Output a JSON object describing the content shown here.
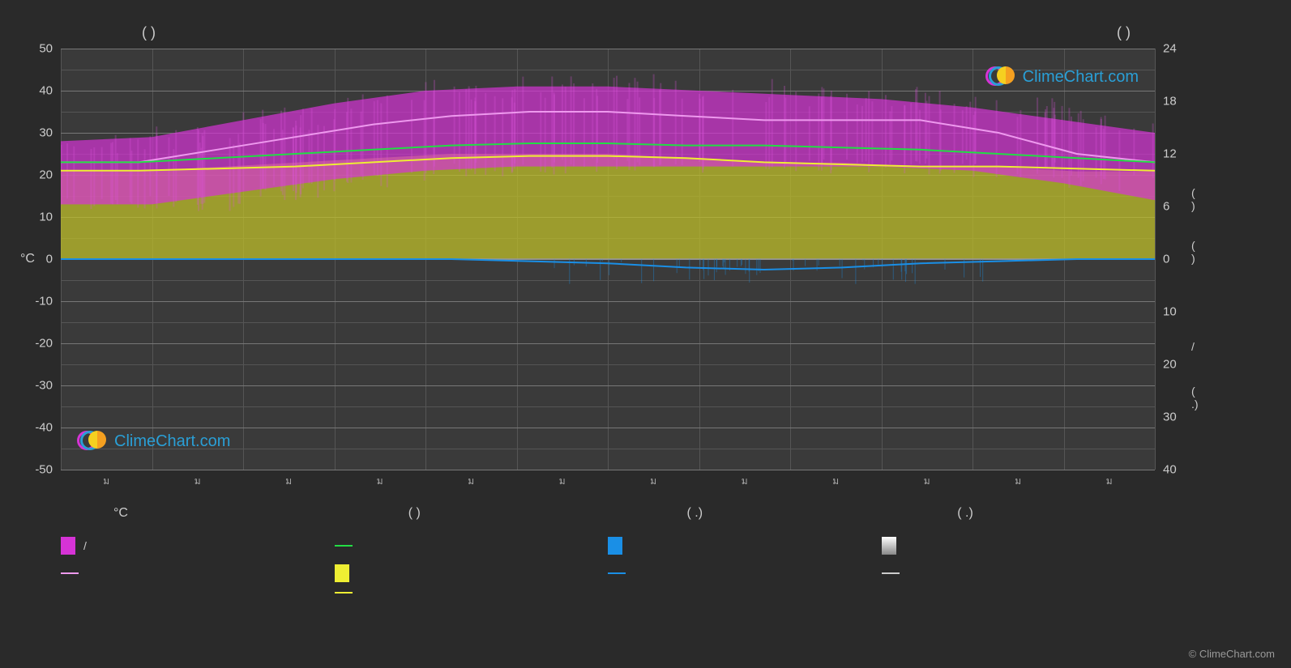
{
  "chart": {
    "type": "climate-composite",
    "background_color": "#2a2a2a",
    "plot_background": "#3a3a3a",
    "grid_color": "#555555",
    "grid_major_color": "#777777",
    "title_left": "(        )",
    "title_right": "(        )",
    "left_axis": {
      "label": "°C",
      "min": -50,
      "max": 50,
      "ticks": [
        50,
        40,
        30,
        20,
        10,
        0,
        -10,
        -20,
        -30,
        -40,
        -50
      ],
      "tick_labels": [
        "50",
        "40",
        "30",
        "20",
        "10",
        "0",
        "-10",
        "-20",
        "-30",
        "-40",
        "-50"
      ]
    },
    "right_axis": {
      "ticks_upper": [
        24,
        18,
        12,
        6,
        0
      ],
      "ticks_lower": [
        10,
        20,
        30,
        40
      ],
      "extra_labels": [
        "(  )",
        "(  )",
        "/",
        "(  .)"
      ]
    },
    "x_axis": {
      "months": 12,
      "tick_label": "ม"
    },
    "series": {
      "temp_range_fill": {
        "color": "#d633d6",
        "opacity": 0.7,
        "upper": [
          28,
          29,
          33,
          37,
          40,
          41,
          41,
          40,
          39,
          38,
          36,
          33,
          30
        ],
        "lower": [
          13,
          13,
          16,
          19,
          21,
          22,
          22,
          22,
          22,
          22,
          21,
          18,
          14
        ]
      },
      "max_temp_line": {
        "color": "#ee99ee",
        "width": 2,
        "values": [
          23,
          23,
          26,
          29,
          32,
          34,
          35,
          35,
          34,
          33,
          33,
          33,
          30,
          25,
          23
        ]
      },
      "mean_temp_line": {
        "color": "#22dd44",
        "width": 2,
        "values": [
          23,
          23,
          24,
          25,
          26,
          27,
          27.5,
          27.5,
          27,
          27,
          26.5,
          26,
          25,
          24,
          23
        ]
      },
      "min_temp_line": {
        "color": "#eeee33",
        "width": 2,
        "values": [
          21,
          21,
          21.5,
          22,
          23,
          24,
          24.5,
          24.5,
          24,
          23,
          22.5,
          22,
          22,
          21.5,
          21
        ]
      },
      "sunshine_fill": {
        "color": "#bdbd2a",
        "opacity": 0.75,
        "upper_right_axis": [
          10,
          10,
          10.5,
          11,
          11.5,
          12,
          12,
          12,
          11.5,
          11,
          11,
          10.5,
          10.5,
          10,
          10
        ],
        "lower": 0
      },
      "precip_line": {
        "color": "#1a8fe6",
        "width": 2,
        "values_below_zero": [
          0,
          0,
          0,
          0,
          0,
          0,
          -0.5,
          -1,
          -2,
          -2.5,
          -2,
          -1,
          -0.5,
          0,
          0
        ]
      },
      "precip_bars": {
        "color": "#1a8fe6",
        "opacity": 0.4
      }
    },
    "watermark": {
      "text": "ClimeChart.com",
      "text_color": "#2a9fd6",
      "logo_c1_color": "#d633d6",
      "logo_c2_color": "#2a9fd6",
      "sun_color": "#f5d020"
    },
    "copyright": "© ClimeChart.com"
  },
  "legend": {
    "headers": [
      "°C",
      "(          )",
      "(  .)",
      "(  .)"
    ],
    "row1": [
      {
        "type": "box",
        "color": "#d633d6",
        "label": "/"
      },
      {
        "type": "line",
        "color": "#22dd44",
        "label": ""
      },
      {
        "type": "box",
        "color": "#1a8fe6",
        "label": ""
      },
      {
        "type": "box",
        "color": "#dddddd",
        "label": ""
      }
    ],
    "row2": [
      {
        "type": "line",
        "color": "#ee99ee",
        "label": ""
      },
      {
        "type": "box",
        "color": "#eeee33",
        "label": ""
      },
      {
        "type": "line",
        "color": "#1a8fe6",
        "label": ""
      },
      {
        "type": "line",
        "color": "#cccccc",
        "label": ""
      }
    ],
    "row3": [
      {
        "type": "none"
      },
      {
        "type": "line",
        "color": "#eeee33",
        "label": ""
      },
      {
        "type": "none"
      },
      {
        "type": "none"
      }
    ]
  }
}
